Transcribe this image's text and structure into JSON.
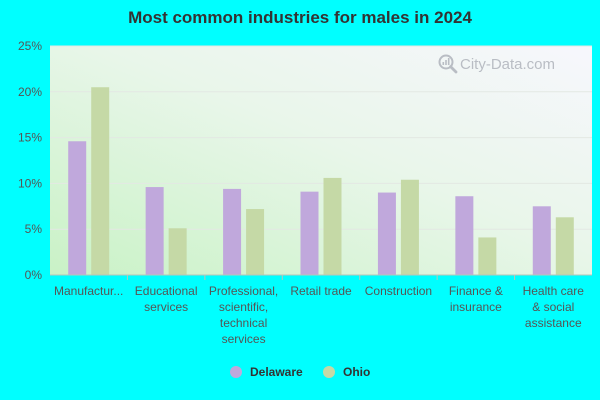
{
  "chart_data": {
    "type": "bar",
    "title": "Most common industries for males in 2024",
    "xlabel": "",
    "ylabel": "",
    "ylim": [
      0,
      25
    ],
    "yticks": [
      "0%",
      "5%",
      "10%",
      "15%",
      "20%",
      "25%"
    ],
    "ytick_values": [
      0,
      5,
      10,
      15,
      20,
      25
    ],
    "categories": [
      [
        "Manufactur..."
      ],
      [
        "Educational",
        "services"
      ],
      [
        "Professional,",
        "scientific,",
        "technical",
        "services"
      ],
      [
        "Retail trade"
      ],
      [
        "Construction"
      ],
      [
        "Finance &",
        "insurance"
      ],
      [
        "Health care",
        "& social",
        "assistance"
      ]
    ],
    "series": [
      {
        "name": "Delaware",
        "color": "#c0a8dc",
        "values": [
          14.6,
          9.6,
          9.4,
          9.1,
          9.0,
          8.6,
          7.5
        ]
      },
      {
        "name": "Ohio",
        "color": "#c5d9a6",
        "values": [
          20.5,
          5.1,
          7.2,
          10.6,
          10.4,
          4.1,
          6.3
        ]
      }
    ],
    "legend_position": "bottom",
    "grid": true
  },
  "watermark": {
    "text": "City-Data.com",
    "icon": "magnifier-icon"
  }
}
